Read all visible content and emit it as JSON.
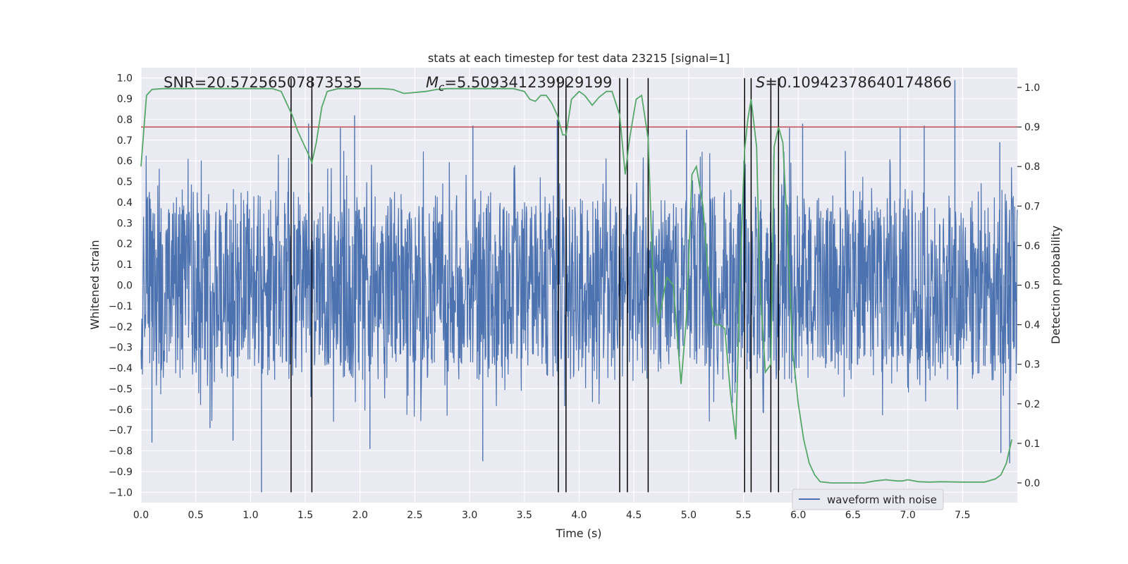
{
  "chart_data": {
    "type": "line",
    "title": "stats at each timestep for test data 23215 [signal=1]",
    "xlabel": "Time (s)",
    "ylabel_left": "Whitened strain",
    "ylabel_right": "Detection probability",
    "xlim": [
      0,
      8.0
    ],
    "ylim_left": [
      -1.05,
      1.05
    ],
    "ylim_right": [
      -0.05,
      1.05
    ],
    "x_ticks": [
      0.0,
      0.5,
      1.0,
      1.5,
      2.0,
      2.5,
      3.0,
      3.5,
      4.0,
      4.5,
      5.0,
      5.5,
      6.0,
      6.5,
      7.0,
      7.5
    ],
    "x_tick_labels": [
      "0.0",
      "0.5",
      "1.0",
      "1.5",
      "2.0",
      "2.5",
      "3.0",
      "3.5",
      "4.0",
      "4.5",
      "5.0",
      "5.5",
      "6.0",
      "6.5",
      "7.0",
      "7.5"
    ],
    "y_left_ticks": [
      -1.0,
      -0.9,
      -0.8,
      -0.7,
      -0.6,
      -0.5,
      -0.4,
      -0.3,
      -0.2,
      -0.1,
      0.0,
      0.1,
      0.2,
      0.3,
      0.4,
      0.5,
      0.6,
      0.7,
      0.8,
      0.9,
      1.0
    ],
    "y_left_tick_labels": [
      "−1.0",
      "−0.9",
      "−0.8",
      "−0.7",
      "−0.6",
      "−0.5",
      "−0.4",
      "−0.3",
      "−0.2",
      "−0.1",
      "0.0",
      "0.1",
      "0.2",
      "0.3",
      "0.4",
      "0.5",
      "0.6",
      "0.7",
      "0.8",
      "0.9",
      "1.0"
    ],
    "y_right_ticks": [
      0.0,
      0.1,
      0.2,
      0.3,
      0.4,
      0.5,
      0.6,
      0.7,
      0.8,
      0.9,
      1.0
    ],
    "y_right_tick_labels": [
      "0.0",
      "0.1",
      "0.2",
      "0.3",
      "0.4",
      "0.5",
      "0.6",
      "0.7",
      "0.8",
      "0.9",
      "1.0"
    ],
    "annotations": {
      "snr": "SNR=20.57256507873535",
      "mc_prefix": "M",
      "mc_sub": "c",
      "mc_value": "=5.509341239929199",
      "s_prefix": "S",
      "s_value": "=0.10942378640174866"
    },
    "legend": {
      "entries": [
        "waveform with noise"
      ],
      "placement": "lower-right"
    },
    "threshold": {
      "value": 0.9,
      "axis": "right",
      "color": "#c44e52"
    },
    "vertical_lines_x": [
      1.37,
      1.56,
      3.81,
      3.88,
      4.37,
      4.44,
      4.63,
      5.51,
      5.57,
      5.75,
      5.82
    ],
    "vertical_lines_range_left": [
      -1.0,
      1.0
    ],
    "waveform": {
      "name": "waveform with noise",
      "color": "#4c72b0",
      "band": 0.38,
      "spikes": [
        {
          "x": 1.1,
          "y": -1.0
        },
        {
          "x": 7.43,
          "y": 0.99
        },
        {
          "x": 1.95,
          "y": 0.82
        },
        {
          "x": 1.53,
          "y": 0.78
        },
        {
          "x": 3.8,
          "y": 0.8
        },
        {
          "x": 3.03,
          "y": 0.77
        },
        {
          "x": 6.04,
          "y": 0.78
        },
        {
          "x": 6.93,
          "y": 0.76
        },
        {
          "x": 3.12,
          "y": -0.85
        },
        {
          "x": 0.1,
          "y": -0.76
        },
        {
          "x": 7.85,
          "y": -0.81
        },
        {
          "x": 7.93,
          "y": -0.86
        },
        {
          "x": 2.09,
          "y": -0.79
        },
        {
          "x": 0.84,
          "y": -0.75
        },
        {
          "x": 0.63,
          "y": -0.69
        },
        {
          "x": 7.84,
          "y": 0.69
        },
        {
          "x": 1.82,
          "y": 0.76
        },
        {
          "x": 4.98,
          "y": 0.75
        },
        {
          "x": 5.92,
          "y": 0.76
        },
        {
          "x": 7.15,
          "y": 0.77
        }
      ]
    },
    "detection_probability": {
      "color": "#55a868",
      "x": [
        0.0,
        0.05,
        0.1,
        0.2,
        0.4,
        0.6,
        0.8,
        1.0,
        1.2,
        1.28,
        1.33,
        1.38,
        1.43,
        1.48,
        1.53,
        1.56,
        1.6,
        1.65,
        1.7,
        1.8,
        2.0,
        2.2,
        2.3,
        2.35,
        2.4,
        2.45,
        2.6,
        2.7,
        2.8,
        3.0,
        3.2,
        3.4,
        3.5,
        3.55,
        3.6,
        3.65,
        3.7,
        3.75,
        3.8,
        3.85,
        3.88,
        3.93,
        4.0,
        4.05,
        4.12,
        4.18,
        4.25,
        4.3,
        4.37,
        4.42,
        4.46,
        4.52,
        4.57,
        4.63,
        4.67,
        4.72,
        4.8,
        4.86,
        4.93,
        4.98,
        5.03,
        5.07,
        5.13,
        5.18,
        5.23,
        5.28,
        5.33,
        5.38,
        5.43,
        5.47,
        5.51,
        5.54,
        5.57,
        5.62,
        5.65,
        5.7,
        5.75,
        5.78,
        5.82,
        5.86,
        5.9,
        5.95,
        6.0,
        6.05,
        6.1,
        6.15,
        6.2,
        6.3,
        6.4,
        6.5,
        6.6,
        6.7,
        6.8,
        6.9,
        6.95,
        7.0,
        7.1,
        7.2,
        7.3,
        7.5,
        7.7,
        7.8,
        7.85,
        7.9,
        7.95
      ],
      "y": [
        0.8,
        0.98,
        0.995,
        0.997,
        0.997,
        0.997,
        0.997,
        0.997,
        0.997,
        0.99,
        0.96,
        0.93,
        0.89,
        0.86,
        0.83,
        0.81,
        0.86,
        0.95,
        0.99,
        0.997,
        0.997,
        0.997,
        0.995,
        0.99,
        0.985,
        0.986,
        0.99,
        0.995,
        0.997,
        0.997,
        0.997,
        0.997,
        0.99,
        0.97,
        0.965,
        0.98,
        0.98,
        0.96,
        0.93,
        0.88,
        0.88,
        0.97,
        0.99,
        0.98,
        0.955,
        0.975,
        0.99,
        0.99,
        0.93,
        0.78,
        0.87,
        0.97,
        0.98,
        0.87,
        0.55,
        0.4,
        0.52,
        0.5,
        0.25,
        0.42,
        0.78,
        0.8,
        0.7,
        0.52,
        0.4,
        0.4,
        0.39,
        0.23,
        0.11,
        0.53,
        0.84,
        0.92,
        0.97,
        0.85,
        0.5,
        0.28,
        0.3,
        0.85,
        0.9,
        0.86,
        0.64,
        0.33,
        0.2,
        0.11,
        0.05,
        0.02,
        0.003,
        0.0,
        0.0,
        0.0,
        0.0,
        0.005,
        0.008,
        0.005,
        0.005,
        0.008,
        0.003,
        0.002,
        0.003,
        0.002,
        0.002,
        0.01,
        0.02,
        0.05,
        0.11
      ]
    }
  }
}
